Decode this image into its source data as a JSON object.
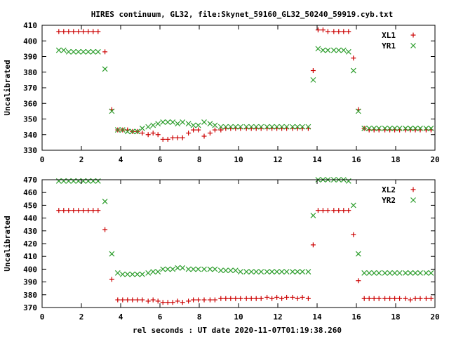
{
  "title": "HIRES continuum, GL32, file:Skynet_59160_GL32_50240_59919.cyb.txt",
  "xlabel": "rel seconds : UT date 2020-11-07T01:19:38.260",
  "colors": {
    "red": "#cc0000",
    "green": "#2e9e2e"
  },
  "chart_data": [
    {
      "type": "scatter",
      "title": "HIRES continuum, GL32, file:Skynet_59160_GL32_50240_59919.cyb.txt",
      "xlabel": "",
      "ylabel": "Uncalibrated",
      "xlim": [
        0,
        20
      ],
      "ylim": [
        330,
        410
      ],
      "xticks": [
        0,
        2,
        4,
        6,
        8,
        10,
        12,
        14,
        16,
        18,
        20
      ],
      "yticks": [
        330,
        340,
        350,
        360,
        370,
        380,
        390,
        400,
        410
      ],
      "grid": false,
      "legend": "top-right",
      "x": [
        0.85,
        1.1,
        1.35,
        1.6,
        1.85,
        2.1,
        2.35,
        2.6,
        2.85,
        3.2,
        3.55,
        3.85,
        4.1,
        4.35,
        4.6,
        4.85,
        5.1,
        5.4,
        5.65,
        5.9,
        6.15,
        6.4,
        6.65,
        6.9,
        7.15,
        7.45,
        7.7,
        7.95,
        8.25,
        8.55,
        8.8,
        9.1,
        9.35,
        9.6,
        9.85,
        10.1,
        10.4,
        10.65,
        10.9,
        11.15,
        11.45,
        11.7,
        11.95,
        12.2,
        12.45,
        12.75,
        13.0,
        13.25,
        13.55,
        13.8,
        14.05,
        14.3,
        14.55,
        14.85,
        15.1,
        15.35,
        15.6,
        15.85,
        16.1,
        16.4,
        16.65,
        16.9,
        17.15,
        17.45,
        17.7,
        17.95,
        18.2,
        18.5,
        18.75,
        19.0,
        19.25,
        19.55,
        19.8
      ],
      "series": [
        {
          "name": "XL1",
          "marker": "plus",
          "color": "#cc0000",
          "values": [
            406,
            406,
            406,
            406,
            406,
            406,
            406,
            406,
            406,
            393,
            356,
            343,
            343,
            343,
            342,
            342,
            341,
            340,
            341,
            340,
            337,
            337,
            338,
            338,
            338,
            341,
            343,
            343,
            339,
            341,
            343,
            343,
            344,
            344,
            344,
            344,
            344,
            344,
            344,
            344,
            344,
            344,
            344,
            344,
            344,
            344,
            344,
            344,
            344,
            381,
            407,
            407,
            406,
            406,
            406,
            406,
            406,
            389,
            356,
            344,
            343,
            343,
            343,
            343,
            343,
            343,
            343,
            343,
            343,
            343,
            343,
            343,
            343
          ]
        },
        {
          "name": "YR1",
          "marker": "cross",
          "color": "#2e9e2e",
          "values": [
            394,
            394,
            393,
            393,
            393,
            393,
            393,
            393,
            393,
            382,
            355,
            343,
            343,
            342,
            342,
            342,
            344,
            345,
            346,
            347,
            348,
            348,
            348,
            347,
            348,
            347,
            346,
            346,
            348,
            347,
            346,
            345,
            345,
            345,
            345,
            345,
            345,
            345,
            345,
            345,
            345,
            345,
            345,
            345,
            345,
            345,
            345,
            345,
            345,
            375,
            395,
            394,
            394,
            394,
            394,
            394,
            393,
            381,
            355,
            344,
            344,
            344,
            344,
            344,
            344,
            344,
            344,
            344,
            344,
            344,
            344,
            344,
            344
          ]
        }
      ]
    },
    {
      "type": "scatter",
      "xlabel": "rel seconds : UT date 2020-11-07T01:19:38.260",
      "ylabel": "Uncalibrated",
      "xlim": [
        0,
        20
      ],
      "ylim": [
        370,
        470
      ],
      "xticks": [
        0,
        2,
        4,
        6,
        8,
        10,
        12,
        14,
        16,
        18,
        20
      ],
      "yticks": [
        370,
        380,
        390,
        400,
        410,
        420,
        430,
        440,
        450,
        460,
        470
      ],
      "grid": false,
      "legend": "top-right",
      "x": [
        0.85,
        1.1,
        1.35,
        1.6,
        1.85,
        2.1,
        2.35,
        2.6,
        2.85,
        3.2,
        3.55,
        3.85,
        4.1,
        4.35,
        4.6,
        4.85,
        5.1,
        5.4,
        5.65,
        5.9,
        6.15,
        6.4,
        6.65,
        6.9,
        7.15,
        7.45,
        7.7,
        7.95,
        8.25,
        8.55,
        8.8,
        9.1,
        9.35,
        9.6,
        9.85,
        10.1,
        10.4,
        10.65,
        10.9,
        11.15,
        11.45,
        11.7,
        11.95,
        12.2,
        12.45,
        12.75,
        13.0,
        13.25,
        13.55,
        13.8,
        14.05,
        14.3,
        14.55,
        14.85,
        15.1,
        15.35,
        15.6,
        15.85,
        16.1,
        16.4,
        16.65,
        16.9,
        17.15,
        17.45,
        17.7,
        17.95,
        18.2,
        18.5,
        18.75,
        19.0,
        19.25,
        19.55,
        19.8
      ],
      "series": [
        {
          "name": "XL2",
          "marker": "plus",
          "color": "#cc0000",
          "values": [
            446,
            446,
            446,
            446,
            446,
            446,
            446,
            446,
            446,
            431,
            392,
            376,
            376,
            376,
            376,
            376,
            376,
            375,
            376,
            375,
            374,
            374,
            374,
            375,
            374,
            375,
            376,
            376,
            376,
            376,
            376,
            377,
            377,
            377,
            377,
            377,
            377,
            377,
            377,
            377,
            378,
            377,
            378,
            377,
            378,
            378,
            377,
            378,
            377,
            419,
            446,
            446,
            446,
            446,
            446,
            446,
            446,
            427,
            391,
            377,
            377,
            377,
            377,
            377,
            377,
            377,
            377,
            377,
            376,
            377,
            377,
            377,
            377
          ]
        },
        {
          "name": "YR2",
          "marker": "cross",
          "color": "#2e9e2e",
          "values": [
            469,
            469,
            469,
            469,
            469,
            469,
            469,
            469,
            469,
            453,
            412,
            397,
            396,
            396,
            396,
            396,
            396,
            397,
            398,
            398,
            400,
            400,
            400,
            401,
            401,
            400,
            400,
            400,
            400,
            400,
            400,
            399,
            399,
            399,
            399,
            398,
            398,
            398,
            398,
            398,
            398,
            398,
            398,
            398,
            398,
            398,
            398,
            398,
            398,
            442,
            470,
            470,
            470,
            470,
            470,
            470,
            469,
            450,
            412,
            397,
            397,
            397,
            397,
            397,
            397,
            397,
            397,
            397,
            397,
            397,
            397,
            397,
            397
          ]
        }
      ]
    }
  ]
}
